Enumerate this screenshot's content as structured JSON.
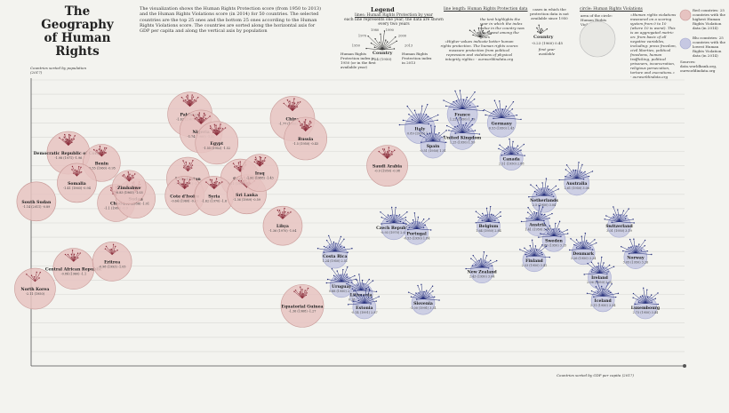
{
  "header": {
    "title_line1": "The Geography",
    "title_line2": "of Human Rights",
    "intro": "The visualization shows the Human Rights Protection score (from 1950 to 2013) and the Human Rights Violations score (in 2014) for 50 countries. The selected countries are the top 25 ones and the bottom 25 ones according to the Human Rights Violations score. The countries are sorted along the horizontal axis for GDP per capita and along the vertical axis by population"
  },
  "legend": {
    "title": "Legend",
    "lines_heading": "lines: Human Rights Protection by year",
    "lines_desc": "each line represents one year; the data are shown every two years",
    "years": [
      "1950",
      "1970",
      "1980",
      "1990",
      "2000",
      "2013"
    ],
    "country_label": "Country",
    "country_sub": "1.24 (1950)",
    "end_note": "Human Rights Protection index in 2013",
    "start_note": "Human Rights Protection index in 1950 (or in the first available year)",
    "length_heading": "line length: Human Rights Protection data",
    "length_note1": "the text highlights the year in which the index value in the country was the lowest among the years",
    "length_note2": "«Higher values indicate better human rights protection. The human rights scores measure protection from political repression and violations of physical integrity rights» - ourworldindata.org",
    "missing_heading": "cases in which the protection data is not available since 1950",
    "missing_country": "Country",
    "missing_sub": "-0.23 (1960) 0.45",
    "first_year": "first year available",
    "circle_heading": "circle: Human Rights Violations",
    "circle_area": "area of the circle: Human Rights Violations data",
    "violations_quote": "«Human rights violations measured on a scoring system from 0 to 10 (where 10 is worst). This is an aggregated metric on: from basic of all negative variables, including: press freedom, civil liberties, political freedoms, human trafficking, political prisoners, incarceration, religious persecution, torture and executions.» - ourworldindata.org",
    "red_note": "Red countries: 25 countries with the highest Human Rights Violation data (in 2014)",
    "blue_note": "Blu countries: 25 countries with the lowest Human Rights Violation data (in 2014)",
    "sources_label": "Sources:",
    "sources": "data.worldbank.org, ourworldindata.org"
  },
  "axes": {
    "y_label": "Countries sorted by population (2017)",
    "x_label": "Countries sorted by GDP per capita (2017)"
  },
  "colors": {
    "red_fill": "#e6c3c1",
    "red_stroke": "#c99a98",
    "red_line": "#8a2c3a",
    "blue_fill": "#c6c8e2",
    "blue_stroke": "#a4a8cf",
    "blue_line": "#232d7a",
    "grid": "#d8d8d4",
    "background": "#f3f3ef"
  },
  "chart_data": {
    "type": "scatter",
    "title": "The Geography of Human Rights",
    "xlabel": "Countries sorted by GDP per capita (2017)",
    "ylabel": "Countries sorted by population (2017)",
    "grid": true,
    "points": [
      {
        "name": "North Korea",
        "group": "red",
        "x": 0.6,
        "y": 5.4,
        "r": 23,
        "fan": 6,
        "note": "-2.11 (1950)"
      },
      {
        "name": "Democratic Republic of Congo",
        "group": "red",
        "x": 5.7,
        "y": 14.9,
        "r": 24,
        "fan": 14,
        "note": "-1.98 (1971) -1.96"
      },
      {
        "name": "Benin",
        "group": "red",
        "x": 10.8,
        "y": 14.2,
        "r": 21,
        "fan": 11,
        "note": "-0.55 (1960) -0.95"
      },
      {
        "name": "Somalia",
        "group": "red",
        "x": 7.0,
        "y": 12.8,
        "r": 22,
        "fan": 9,
        "note": "-1.41 (1960) -0.94"
      },
      {
        "name": "Chad",
        "group": "red",
        "x": 13.0,
        "y": 11.4,
        "r": 21,
        "fan": 11,
        "note": "-1.1 (1960) -0.9"
      },
      {
        "name": "Sudan",
        "group": "red",
        "x": 16.0,
        "y": 11.7,
        "r": 22,
        "fan": 11,
        "note": "-1.03 (1956) -1.01"
      },
      {
        "name": "Zimbabwe",
        "group": "red",
        "x": 15.0,
        "y": 12.5,
        "r": 19,
        "fan": 10,
        "note": "-0.83 (1965) -1.03"
      },
      {
        "name": "South Sudan",
        "group": "red",
        "x": 0.8,
        "y": 11.5,
        "r": 22,
        "fan": 0,
        "note": "-1.14 (2011) -0.89"
      },
      {
        "name": "Central African Republic",
        "group": "red",
        "x": 6.5,
        "y": 6.8,
        "r": 23,
        "fan": 10,
        "note": "-0.84 (1960) -1.1"
      },
      {
        "name": "Eritrea",
        "group": "red",
        "x": 12.4,
        "y": 7.3,
        "r": 22,
        "fan": 8,
        "note": "-0.98 (1993) -1.05"
      },
      {
        "name": "Pakistan",
        "group": "red",
        "x": 24.3,
        "y": 17.6,
        "r": 25,
        "fan": 14,
        "note": "-1.62 (1947) -1.35"
      },
      {
        "name": "Nigeria",
        "group": "red",
        "x": 26.0,
        "y": 16.4,
        "r": 24,
        "fan": 13,
        "note": "-1.74 (1960) -1.32"
      },
      {
        "name": "Egypt",
        "group": "red",
        "x": 28.4,
        "y": 15.6,
        "r": 24,
        "fan": 14,
        "note": "-1.55 (1952) -1.52"
      },
      {
        "name": "Uzbekistan",
        "group": "red",
        "x": 24.0,
        "y": 13.1,
        "r": 24,
        "fan": 9,
        "note": "-1.21 (1991) -1.32"
      },
      {
        "name": "Cote d'Ivoire",
        "group": "red",
        "x": 23.5,
        "y": 11.9,
        "r": 22,
        "fan": 11,
        "note": "-0.64 (1960) -0.85"
      },
      {
        "name": "Sudan",
        "group": "red",
        "x": 32.0,
        "y": 13.1,
        "r": 22,
        "fan": 11,
        "note": "-1.21 (1956) -1.32"
      },
      {
        "name": "Syria",
        "group": "red",
        "x": 28.0,
        "y": 11.9,
        "r": 22,
        "fan": 12,
        "note": "-1.62 (1970) -1.6"
      },
      {
        "name": "Sri Lanka",
        "group": "red",
        "x": 33.0,
        "y": 12.0,
        "r": 22,
        "fan": 12,
        "note": "-1.36 (1989) -0.59"
      },
      {
        "name": "Iraq",
        "group": "red",
        "x": 35.0,
        "y": 13.5,
        "r": 21,
        "fan": 13,
        "note": "-1.92 (1988) -1.43"
      },
      {
        "name": "China",
        "group": "red",
        "x": 40.0,
        "y": 17.3,
        "r": 25,
        "fan": 13,
        "note": "-1.77 (1966) -1.26"
      },
      {
        "name": "Russia",
        "group": "red",
        "x": 42.0,
        "y": 15.9,
        "r": 24,
        "fan": 13,
        "note": "-1.5 (1950) -0.43"
      },
      {
        "name": "Saudi Arabia",
        "group": "red",
        "x": 54.5,
        "y": 14.0,
        "r": 23,
        "fan": 13,
        "note": "-0.9 (1950) -0.98"
      },
      {
        "name": "Libya",
        "group": "red",
        "x": 38.5,
        "y": 9.8,
        "r": 22,
        "fan": 11,
        "note": "-1.36 (1970) -1.04"
      },
      {
        "name": "Equatorial Guinea",
        "group": "red",
        "x": 41.5,
        "y": 4.2,
        "r": 24,
        "fan": 11,
        "note": "-1.36 (1968) -1.27"
      },
      {
        "name": "France",
        "group": "blue",
        "x": 66.0,
        "y": 17.6,
        "r": 17,
        "fan": 14,
        "note": "1.22 (1950) 1.29"
      },
      {
        "name": "Germany",
        "group": "blue",
        "x": 72.0,
        "y": 17.0,
        "r": 16,
        "fan": 14,
        "note": "0.53 (1950) 1.43"
      },
      {
        "name": "Italy",
        "group": "blue",
        "x": 59.5,
        "y": 16.6,
        "r": 17,
        "fan": 14,
        "note": "0.89 (1950) 1.21"
      },
      {
        "name": "Spain",
        "group": "blue",
        "x": 61.5,
        "y": 15.4,
        "r": 14,
        "fan": 14,
        "note": "-0.51 (1950) 1.31"
      },
      {
        "name": "United Kingdom",
        "group": "blue",
        "x": 66.0,
        "y": 16.0,
        "r": 14,
        "fan": 14,
        "note": "1.25 (1950) 1.59"
      },
      {
        "name": "Canada",
        "group": "blue",
        "x": 73.5,
        "y": 14.5,
        "r": 13,
        "fan": 14,
        "note": "2.51 (1950) 2.88"
      },
      {
        "name": "Australia",
        "group": "blue",
        "x": 83.5,
        "y": 12.8,
        "r": 14,
        "fan": 14,
        "note": "2.61 (1950) 3.06"
      },
      {
        "name": "Netherlands",
        "group": "blue",
        "x": 78.5,
        "y": 11.6,
        "r": 14,
        "fan": 14,
        "note": "2.5 (1950) 3.04"
      },
      {
        "name": "Austria",
        "group": "blue",
        "x": 77.5,
        "y": 9.9,
        "r": 13,
        "fan": 14,
        "note": "1.41 (1950) 3.04"
      },
      {
        "name": "Belgium",
        "group": "blue",
        "x": 70.0,
        "y": 9.8,
        "r": 13,
        "fan": 14,
        "note": "1.64 (1950) 2.84"
      },
      {
        "name": "Sweden",
        "group": "blue",
        "x": 80.0,
        "y": 8.8,
        "r": 13,
        "fan": 14,
        "note": "2.86 (1950) 3.15"
      },
      {
        "name": "Czech Republic",
        "group": "blue",
        "x": 55.5,
        "y": 9.7,
        "r": 14,
        "fan": 14,
        "note": "-0.93 (1970) 2.64"
      },
      {
        "name": "Portugal",
        "group": "blue",
        "x": 59.0,
        "y": 9.3,
        "r": 13,
        "fan": 14,
        "note": "-0.53 (1950) 1.84"
      },
      {
        "name": "Switzerland",
        "group": "blue",
        "x": 90.0,
        "y": 9.8,
        "r": 13,
        "fan": 14,
        "note": "3.01 (1950) 3.19"
      },
      {
        "name": "Denmark",
        "group": "blue",
        "x": 84.5,
        "y": 7.9,
        "r": 13,
        "fan": 14,
        "note": "3.26 (1950) 3.24"
      },
      {
        "name": "Finland",
        "group": "blue",
        "x": 77.0,
        "y": 7.4,
        "r": 13,
        "fan": 14,
        "note": "2.33 (1950) 3.41"
      },
      {
        "name": "Norway",
        "group": "blue",
        "x": 92.5,
        "y": 7.6,
        "r": 13,
        "fan": 14,
        "note": "3.05 (1950) 3.26"
      },
      {
        "name": "Ireland",
        "group": "blue",
        "x": 87.0,
        "y": 6.2,
        "r": 13,
        "fan": 14,
        "note": "2.06 (1950) 2.92"
      },
      {
        "name": "Costa Rica",
        "group": "blue",
        "x": 46.5,
        "y": 7.7,
        "r": 14,
        "fan": 14,
        "note": "1.24 (1950) 2.51"
      },
      {
        "name": "Uruguay",
        "group": "blue",
        "x": 47.5,
        "y": 5.6,
        "r": 13,
        "fan": 14,
        "note": "0.88 (1950) 2.43"
      },
      {
        "name": "Lithuania",
        "group": "blue",
        "x": 50.5,
        "y": 5.0,
        "r": 13,
        "fan": 14,
        "note": "0.18 (1991) 2.32"
      },
      {
        "name": "Estonia",
        "group": "blue",
        "x": 51.0,
        "y": 4.1,
        "r": 13,
        "fan": 14,
        "note": "-0.14 (1991) 2.87"
      },
      {
        "name": "Slovenia",
        "group": "blue",
        "x": 60.0,
        "y": 4.4,
        "r": 13,
        "fan": 14,
        "note": "-1.00 (1991) 3.31"
      },
      {
        "name": "New Zealand",
        "group": "blue",
        "x": 69.0,
        "y": 6.6,
        "r": 13,
        "fan": 14,
        "note": "2.43 (1950) 3.04"
      },
      {
        "name": "Iceland",
        "group": "blue",
        "x": 87.5,
        "y": 4.6,
        "r": 13,
        "fan": 14,
        "note": "3.11 (1950) 3.34"
      },
      {
        "name": "Luxembourg",
        "group": "blue",
        "x": 94.0,
        "y": 4.1,
        "r": 13,
        "fan": 14,
        "note": "2.73 (1950) 3.44"
      }
    ]
  }
}
